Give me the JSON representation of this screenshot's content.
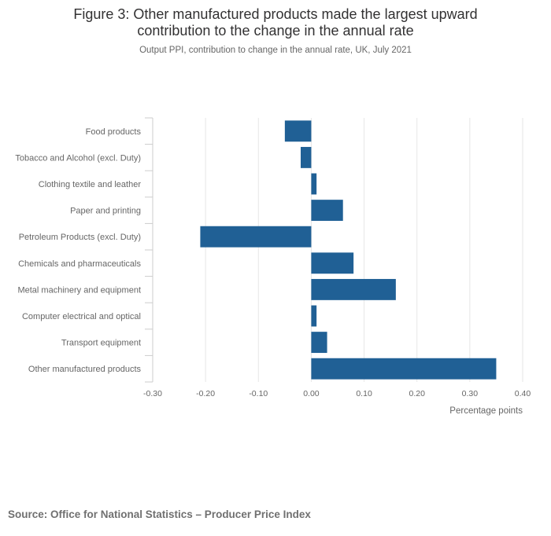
{
  "title_lines": [
    "Figure 3: Other manufactured products made the largest upward",
    "contribution to the change in the annual rate"
  ],
  "subtitle": "Output PPI, contribution to change in the annual rate, UK, July 2021",
  "source": "Source: Office for National Statistics – Producer Price Index",
  "colors": {
    "bar": "#206095",
    "grid": "#e6e6e6",
    "axis": "#cccccc",
    "tick_text": "#666666"
  },
  "chart_data": {
    "type": "bar",
    "orientation": "horizontal",
    "title": "Figure 3: Other manufactured products made the largest upward contribution to the change in the annual rate",
    "subtitle": "Output PPI, contribution to change in the annual rate, UK, July 2021",
    "xlabel": "Percentage points",
    "ylabel": "",
    "categories": [
      "Food products",
      "Tobacco and Alcohol (excl. Duty)",
      "Clothing textile and leather",
      "Paper and printing",
      "Petroleum Products (excl. Duty)",
      "Chemicals and pharmaceuticals",
      "Metal machinery and equipment",
      "Computer electrical and optical",
      "Transport equipment",
      "Other manufactured products"
    ],
    "values": [
      -0.05,
      -0.02,
      0.01,
      0.06,
      -0.21,
      0.08,
      0.16,
      0.01,
      0.03,
      0.35
    ],
    "xlim": [
      -0.3,
      0.4
    ],
    "xticks": [
      -0.3,
      -0.2,
      -0.1,
      0.0,
      0.1,
      0.2,
      0.3,
      0.4
    ],
    "xtick_labels": [
      "-0.30",
      "-0.20",
      "-0.10",
      "0.00",
      "0.10",
      "0.20",
      "0.30",
      "0.40"
    ],
    "grid": true,
    "legend": "none"
  }
}
